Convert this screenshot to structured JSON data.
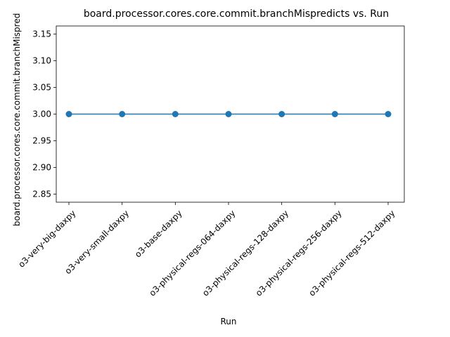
{
  "chart_data": {
    "type": "line",
    "title": "board.processor.cores.core.commit.branchMispredicts vs. Run",
    "xlabel": "Run",
    "ylabel": "board.processor.cores.core.commit.branchMispredicts",
    "categories": [
      "o3-very-big-daxpy",
      "o3-very-small-daxpy",
      "o3-base-daxpy",
      "o3-physical-regs-064-daxpy",
      "o3-physical-regs-128-daxpy",
      "o3-physical-regs-256-daxpy",
      "o3-physical-regs-512-daxpy"
    ],
    "series": [
      {
        "values": [
          3,
          3,
          3,
          3,
          3,
          3,
          3
        ]
      }
    ],
    "ylim": [
      2.835,
      3.165
    ],
    "yticks": [
      "2.85",
      "2.90",
      "2.95",
      "3.00",
      "3.05",
      "3.10",
      "3.15"
    ],
    "grid": false,
    "color": "#1f77b4"
  }
}
